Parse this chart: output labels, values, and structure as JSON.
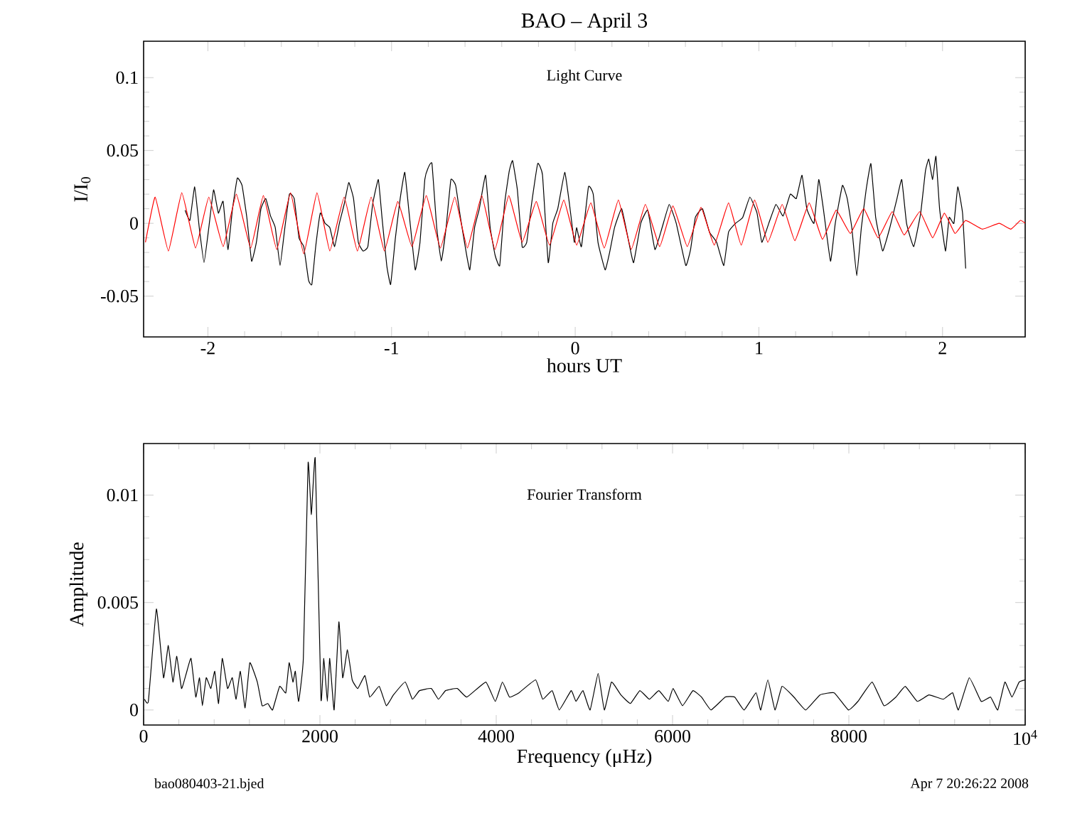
{
  "chart_data": [
    {
      "type": "line",
      "title": "BAO – April 3",
      "xlabel": "hours UT",
      "ylabel": "I/I$_{0}$",
      "xlim": [
        -2.35,
        2.45
      ],
      "ylim": [
        -0.078,
        0.125
      ],
      "xticks": [
        -2,
        -1,
        0,
        1,
        2
      ],
      "yticks": [
        -0.05,
        0,
        0.05,
        0.1
      ],
      "annotations": [
        "Light Curve"
      ],
      "series": [
        {
          "color": "#000000",
          "x": [
            -2.124,
            -2.098,
            -2.072,
            -2.047,
            -2.021,
            -1.995,
            -1.969,
            -1.943,
            -1.917,
            -1.891,
            -1.866,
            -1.84,
            -1.814,
            -1.788,
            -1.762,
            -1.736,
            -1.711,
            -1.685,
            -1.659,
            -1.633,
            -1.607,
            -1.581,
            -1.556,
            -1.53,
            -1.504,
            -1.478,
            -1.452,
            -1.434,
            -1.413,
            -1.388,
            -1.362,
            -1.336,
            -1.31,
            -1.284,
            -1.258,
            -1.233,
            -1.207,
            -1.181,
            -1.155,
            -1.129,
            -1.103,
            -1.072,
            -1.052,
            -1.026,
            -1.005,
            -0.979,
            -0.953,
            -0.928,
            -0.902,
            -0.871,
            -0.845,
            -0.819,
            -0.801,
            -0.78,
            -0.754,
            -0.729,
            -0.703,
            -0.677,
            -0.651,
            -0.625,
            -0.599,
            -0.574,
            -0.548,
            -0.522,
            -0.488,
            -0.463,
            -0.436,
            -0.411,
            -0.385,
            -0.359,
            -0.341,
            -0.315,
            -0.289,
            -0.264,
            -0.238,
            -0.204,
            -0.178,
            -0.147,
            -0.122,
            -0.095,
            -0.057,
            -0.031,
            -0.005,
            0.008,
            0.034,
            0.072,
            0.098,
            0.124,
            0.163,
            0.189,
            0.214,
            0.253,
            0.292,
            0.318,
            0.357,
            0.395,
            0.434,
            0.473,
            0.512,
            0.55,
            0.602,
            0.628,
            0.654,
            0.693,
            0.731,
            0.77,
            0.809,
            0.835,
            0.873,
            0.912,
            0.951,
            0.99,
            1.016,
            1.054,
            1.093,
            1.132,
            1.171,
            1.204,
            1.235,
            1.261,
            1.3,
            1.326,
            1.351,
            1.39,
            1.416,
            1.455,
            1.481,
            1.506,
            1.533,
            1.558,
            1.584,
            1.61,
            1.636,
            1.674,
            1.713,
            1.752,
            1.778,
            1.804,
            1.843,
            1.881,
            1.907,
            1.925,
            1.946,
            1.964,
            1.984,
            2.016,
            2.036,
            2.062,
            2.083,
            2.109,
            2.126
          ],
          "values": [
            0.009,
            0.002,
            0.025,
            -0.003,
            -0.027,
            -0.003,
            0.023,
            0.007,
            0.015,
            -0.018,
            0.01,
            0.031,
            0.026,
            0.004,
            -0.026,
            -0.013,
            0.01,
            0.017,
            0.005,
            -0.003,
            -0.029,
            -0.003,
            0.02,
            0.017,
            -0.01,
            -0.016,
            -0.039,
            -0.042,
            -0.016,
            0.007,
            0.0,
            -0.003,
            -0.016,
            0.0,
            0.013,
            0.028,
            0.017,
            -0.013,
            -0.019,
            -0.016,
            0.013,
            0.03,
            0.004,
            -0.029,
            -0.042,
            -0.01,
            0.017,
            0.035,
            0.004,
            -0.032,
            -0.013,
            0.03,
            0.038,
            0.041,
            -0.003,
            -0.026,
            -0.003,
            0.03,
            0.026,
            0.004,
            -0.016,
            -0.032,
            -0.003,
            0.01,
            0.033,
            -0.003,
            -0.022,
            -0.029,
            0.013,
            0.036,
            0.043,
            0.023,
            -0.016,
            -0.013,
            0.013,
            0.041,
            0.033,
            -0.027,
            0.0,
            0.01,
            0.035,
            0.013,
            -0.013,
            -0.003,
            -0.016,
            0.025,
            0.02,
            -0.013,
            -0.032,
            -0.019,
            -0.003,
            0.01,
            -0.013,
            -0.027,
            0.0,
            0.009,
            -0.018,
            -0.003,
            0.013,
            0.0,
            -0.029,
            -0.018,
            0.004,
            0.01,
            -0.006,
            -0.013,
            -0.029,
            -0.006,
            0.0,
            0.004,
            0.018,
            0.007,
            -0.013,
            0.0,
            0.013,
            0.005,
            0.02,
            0.017,
            0.033,
            0.01,
            0.0,
            0.03,
            0.01,
            -0.026,
            0.0,
            0.026,
            0.017,
            -0.003,
            -0.036,
            -0.003,
            0.023,
            0.041,
            0.004,
            -0.019,
            -0.003,
            0.017,
            0.03,
            0.0,
            -0.016,
            0.007,
            0.036,
            0.044,
            0.03,
            0.046,
            0.01,
            -0.019,
            0.004,
            0.0,
            0.025,
            0.007,
            -0.031
          ]
        },
        {
          "color": "#ff0000",
          "x": [
            -2.34,
            -2.287,
            -2.215,
            -2.142,
            -2.067,
            -1.995,
            -1.917,
            -1.845,
            -1.767,
            -1.698,
            -1.625,
            -1.55,
            -1.478,
            -1.406,
            -1.336,
            -1.258,
            -1.186,
            -1.111,
            -1.039,
            -0.966,
            -0.889,
            -0.811,
            -0.734,
            -0.656,
            -0.587,
            -0.509,
            -0.437,
            -0.362,
            -0.289,
            -0.212,
            -0.14,
            -0.062,
            0.008,
            0.085,
            0.158,
            0.235,
            0.305,
            0.382,
            0.46,
            0.532,
            0.61,
            0.685,
            0.757,
            0.835,
            0.904,
            0.977,
            1.049,
            1.127,
            1.196,
            1.274,
            1.346,
            1.421,
            1.498,
            1.571,
            1.649,
            1.726,
            1.791,
            1.876,
            1.946,
            2.01,
            2.068,
            2.126,
            2.217,
            2.308,
            2.372,
            2.424,
            2.45
          ],
          "values": [
            -0.013,
            0.018,
            -0.019,
            0.021,
            -0.017,
            0.018,
            -0.016,
            0.02,
            -0.017,
            0.019,
            -0.018,
            0.021,
            -0.021,
            0.021,
            -0.019,
            0.018,
            -0.019,
            0.018,
            -0.019,
            0.015,
            -0.016,
            0.019,
            -0.017,
            0.018,
            -0.017,
            0.019,
            -0.018,
            0.019,
            -0.013,
            0.015,
            -0.015,
            0.016,
            -0.015,
            0.014,
            -0.017,
            0.016,
            -0.018,
            0.013,
            -0.016,
            0.012,
            -0.016,
            0.011,
            -0.015,
            0.014,
            -0.015,
            0.016,
            -0.013,
            0.013,
            -0.012,
            0.014,
            -0.011,
            0.009,
            -0.007,
            0.01,
            -0.01,
            0.008,
            -0.008,
            0.008,
            -0.01,
            0.007,
            -0.007,
            0.002,
            -0.004,
            0.0,
            -0.004,
            0.002,
            0.0
          ]
        }
      ]
    },
    {
      "type": "line",
      "xlabel": "Frequency (μHz)",
      "ylabel": "Amplitude",
      "xlim": [
        0,
        10000
      ],
      "ylim": [
        -0.0007,
        0.0124
      ],
      "xticks": [
        0,
        2000,
        4000,
        6000,
        8000,
        {
          "value": 10000,
          "label": "10$^{4}$"
        }
      ],
      "yticks": [
        0,
        0.005,
        0.01
      ],
      "annotations": [
        "Fourier Transform",
        "bao080403-21.bjed",
        "Apr 7 20:26:22 2008"
      ],
      "series": [
        {
          "color": "#000000",
          "x": [
            11,
            54,
            145,
            226,
            280,
            333,
            376,
            430,
            484,
            538,
            592,
            634,
            667,
            710,
            763,
            807,
            850,
            892,
            952,
            1006,
            1049,
            1097,
            1151,
            1205,
            1290,
            1344,
            1409,
            1463,
            1543,
            1613,
            1651,
            1694,
            1721,
            1758,
            1812,
            1866,
            1903,
            1947,
            2012,
            2044,
            2084,
            2111,
            2161,
            2215,
            2258,
            2312,
            2366,
            2430,
            2511,
            2565,
            2672,
            2753,
            2834,
            2968,
            3049,
            3129,
            3264,
            3344,
            3425,
            3559,
            3667,
            3882,
            3989,
            4070,
            4150,
            4258,
            4447,
            4527,
            4635,
            4715,
            4850,
            4904,
            4984,
            5065,
            5156,
            5226,
            5307,
            5414,
            5522,
            5629,
            5737,
            5844,
            5952,
            6006,
            6113,
            6231,
            6328,
            6436,
            6597,
            6705,
            6812,
            6947,
            7000,
            7081,
            7162,
            7242,
            7377,
            7511,
            7672,
            7834,
            7995,
            8103,
            8264,
            8398,
            8533,
            8640,
            8775,
            8909,
            9070,
            9178,
            9242,
            9366,
            9501,
            9608,
            9689,
            9770,
            9850,
            9931,
            10000
          ],
          "values": [
            0.0005,
            0.0004,
            0.0047,
            0.0015,
            0.003,
            0.0013,
            0.0025,
            0.001,
            0.0017,
            0.0024,
            0.0006,
            0.0015,
            0.0002,
            0.0015,
            0.001,
            0.0018,
            0.0003,
            0.0024,
            0.001,
            0.0015,
            0.0005,
            0.0018,
            0.0001,
            0.0022,
            0.0013,
            0.0002,
            0.0003,
            0.0,
            0.0011,
            0.0008,
            0.0022,
            0.0013,
            0.0018,
            0.0004,
            0.0024,
            0.0115,
            0.0091,
            0.0117,
            0.0005,
            0.0024,
            0.0004,
            0.0024,
            0.0,
            0.0041,
            0.0015,
            0.0028,
            0.0014,
            0.001,
            0.0016,
            0.0006,
            0.0011,
            0.0002,
            0.0007,
            0.0013,
            0.0005,
            0.0009,
            0.001,
            0.0005,
            0.0009,
            0.001,
            0.0006,
            0.0013,
            0.0004,
            0.0013,
            0.0006,
            0.0008,
            0.0014,
            0.0005,
            0.0009,
            0.0,
            0.0009,
            0.0004,
            0.0009,
            0.0,
            0.0017,
            0.0,
            0.0013,
            0.0007,
            0.0003,
            0.0009,
            0.0005,
            0.0009,
            0.0004,
            0.001,
            0.0002,
            0.0009,
            0.0006,
            0.0,
            0.0006,
            0.0006,
            0.0,
            0.0008,
            0.0,
            0.0014,
            0.0,
            0.0011,
            0.0006,
            0.0,
            0.0007,
            0.0008,
            0.0,
            0.0004,
            0.0013,
            0.0002,
            0.0006,
            0.0011,
            0.0004,
            0.0007,
            0.0005,
            0.0008,
            0.0,
            0.0015,
            0.0004,
            0.0006,
            0.0,
            0.0013,
            0.0006,
            0.0013,
            0.0014
          ]
        }
      ]
    }
  ]
}
